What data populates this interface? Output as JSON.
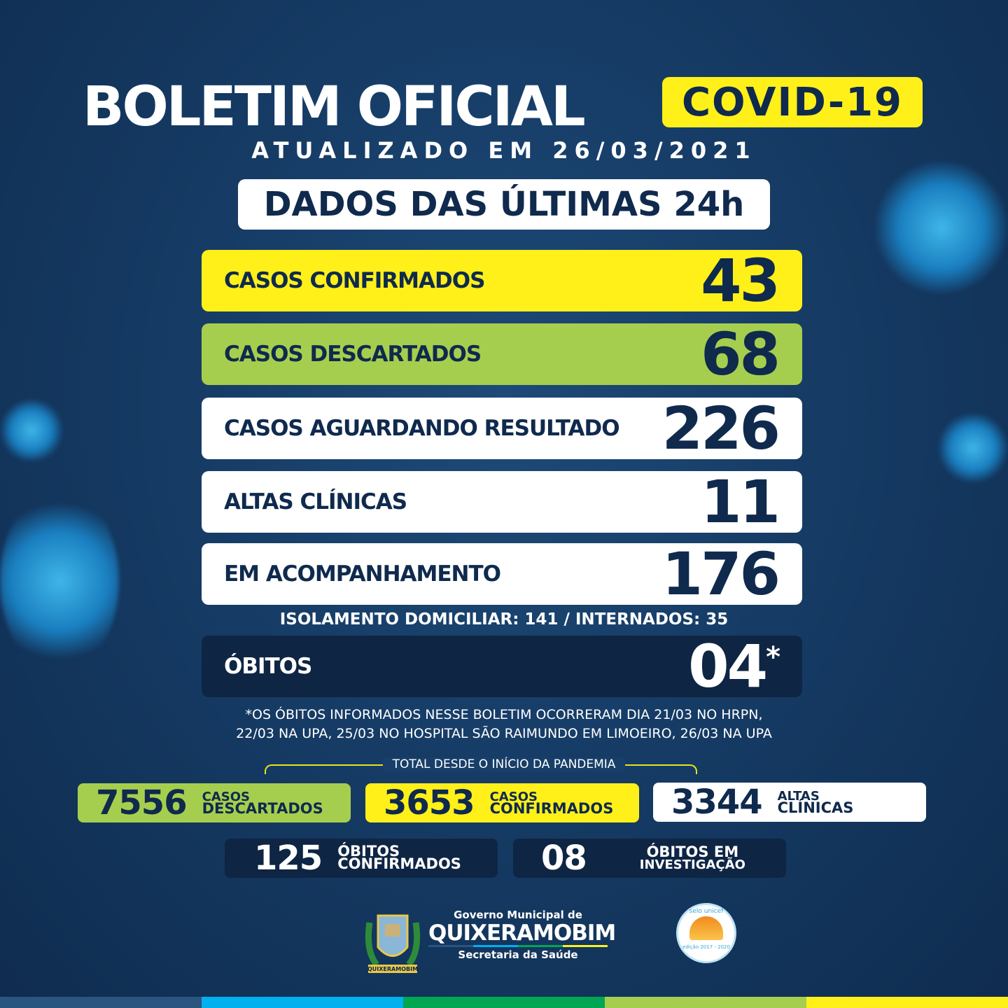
{
  "header": {
    "title": "BOLETIM OFICIAL",
    "badge": "COVID-19",
    "updated_label": "ATUALIZADO EM",
    "updated_date": "26/03/2021",
    "period": "DADOS DAS ÚLTIMAS 24h"
  },
  "rows": [
    {
      "label": "CASOS CONFIRMADOS",
      "value": "43",
      "color": "#fff01a"
    },
    {
      "label": "CASOS DESCARTADOS",
      "value": "68",
      "color": "#a6ce4e"
    },
    {
      "label": "CASOS AGUARDANDO RESULTADO",
      "value": "226",
      "color": "#ffffff"
    },
    {
      "label": "ALTAS CLÍNICAS",
      "value": "11",
      "color": "#ffffff"
    },
    {
      "label": "EM ACOMPANHAMENTO",
      "value": "176",
      "color": "#ffffff"
    }
  ],
  "subline": "ISOLAMENTO DOMICILIAR: 141 /  INTERNADOS: 35",
  "obitos": {
    "label": "ÓBITOS",
    "value": "04",
    "mark": "*"
  },
  "note": [
    "*OS ÓBITOS INFORMADOS NESSE BOLETIM OCORRERAM DIA 21/03 NO HRPN,",
    "22/03 NA UPA, 25/03 NO HOSPITAL SÃO RAIMUNDO EM LIMOEIRO, 26/03 NA UPA"
  ],
  "totals": {
    "heading": "TOTAL DESDE O INÍCIO DA PANDEMIA",
    "items": [
      {
        "value": "7556",
        "line1": "CASOS",
        "line2": "DESCARTADOS",
        "color": "#a6ce4e"
      },
      {
        "value": "3653",
        "line1": "CASOS",
        "line2": "CONFIRMADOS",
        "color": "#fff01a"
      },
      {
        "value": "3344",
        "line1": "ALTAS",
        "line2": "CLÍNICAS",
        "color": "#ffffff"
      },
      {
        "value": "125",
        "line1": "ÓBITOS",
        "line2": "CONFIRMADOS",
        "color": "#0e2544"
      },
      {
        "value": "08",
        "line1": "ÓBITOS EM",
        "line2": "INVESTIGAÇÃO",
        "color": "#0e2544"
      }
    ]
  },
  "footer": {
    "gov": "Governo Municipal de",
    "city": "QUIXERAMOBIM",
    "dept": "Secretaria da Saúde",
    "crest_text": "QUIXERAMOBIM",
    "seal_top": "selo unicef",
    "seal_bottom": "edição 2017 - 2020"
  },
  "stripe_colors": [
    "#2a5580",
    "#00b0ef",
    "#00a651",
    "#a6ce4e",
    "#fff01a"
  ]
}
